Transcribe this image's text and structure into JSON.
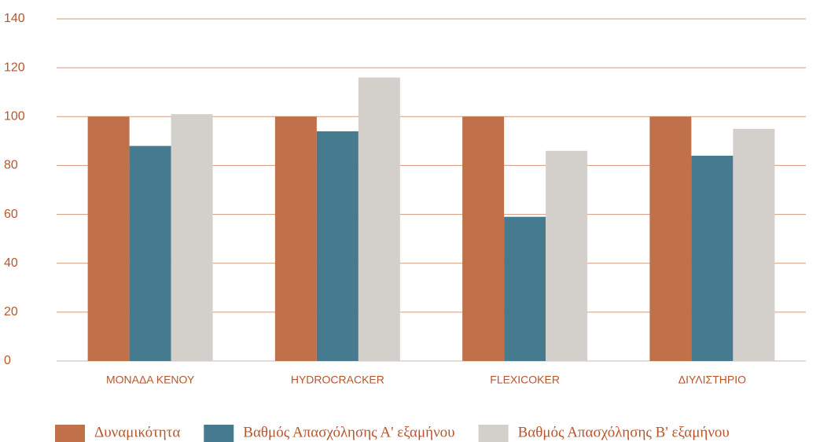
{
  "chart_data": {
    "type": "bar",
    "categories": [
      "ΜΟΝΑΔΑ ΚΕΝΟΥ",
      "HYDROCRACKER",
      "FLEXICOKER",
      "ΔΙΥΛΙΣΤΗΡΙΟ"
    ],
    "series": [
      {
        "name": "Δυναμικότητα",
        "color": "#c0714a",
        "values": [
          100,
          100,
          100,
          100
        ]
      },
      {
        "name": "Βαθμός Απασχόλησης Α' εξαμήνου",
        "color": "#457a8f",
        "values": [
          88,
          94,
          59,
          84
        ]
      },
      {
        "name": "Βαθμός Απασχόλησης Β' εξαμήνου",
        "color": "#d3d0cb",
        "values": [
          101,
          116,
          86,
          95
        ]
      }
    ],
    "ylim": [
      0,
      140
    ],
    "yticks": [
      0,
      20,
      40,
      60,
      80,
      100,
      120,
      140
    ],
    "grid": true,
    "legend": "bottom"
  }
}
